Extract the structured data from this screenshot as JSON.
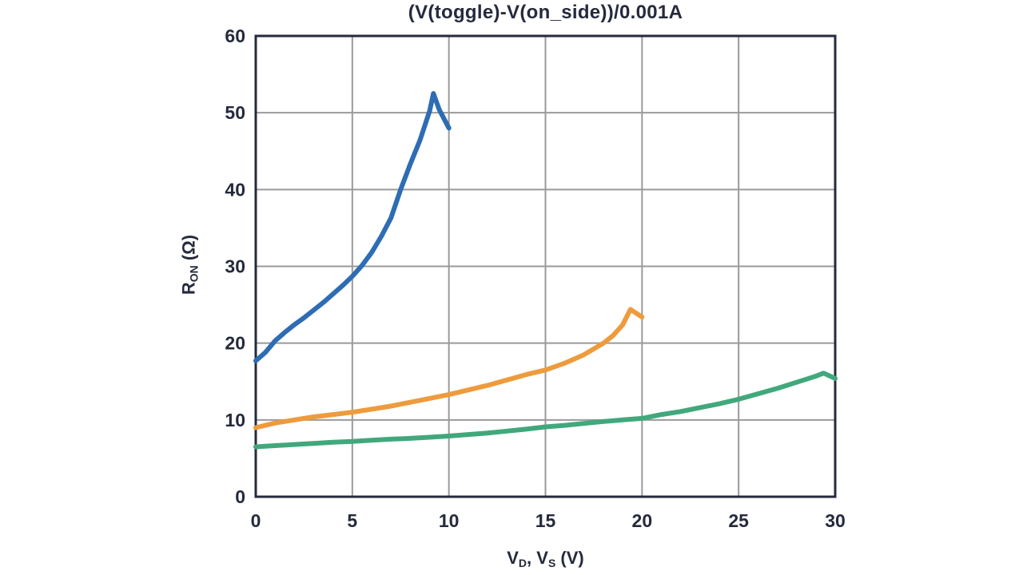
{
  "chart_data": {
    "type": "line",
    "title": "(V(toggle)-V(on_side))/0.001A",
    "xlabel": "V_D, V_S (V)",
    "ylabel": "R_ON (Ω)",
    "xlabel_parts": {
      "p1": "V",
      "s1": "D",
      "p2": ", V",
      "s2": "S",
      "p3": " (V)"
    },
    "ylabel_parts": {
      "p1": "R",
      "s1": "ON",
      "p2": " (Ω)"
    },
    "xlim": [
      0,
      30
    ],
    "ylim": [
      0,
      60
    ],
    "xticks": [
      0,
      5,
      10,
      15,
      20,
      25,
      30
    ],
    "yticks": [
      0,
      10,
      20,
      30,
      40,
      50,
      60
    ],
    "grid": true,
    "legend": "none",
    "colors": {
      "background": "#ffffff",
      "axis_border": "#252a3c",
      "gridline": "#9a9a9a",
      "text": "#252a3c",
      "series_blue": "#2e6db4",
      "series_orange": "#ee9b3d",
      "series_green": "#41a87c"
    },
    "series": [
      {
        "name": "curve-blue",
        "color": "#2e6db4",
        "points": [
          [
            0,
            17.7
          ],
          [
            0.5,
            18.8
          ],
          [
            1,
            20.3
          ],
          [
            1.5,
            21.4
          ],
          [
            2,
            22.4
          ],
          [
            2.5,
            23.3
          ],
          [
            3,
            24.3
          ],
          [
            3.5,
            25.3
          ],
          [
            4,
            26.4
          ],
          [
            4.5,
            27.5
          ],
          [
            5,
            28.7
          ],
          [
            5.5,
            30.1
          ],
          [
            6,
            31.8
          ],
          [
            6.5,
            33.9
          ],
          [
            7,
            36.3
          ],
          [
            7.5,
            40
          ],
          [
            8,
            43.3
          ],
          [
            8.5,
            46.4
          ],
          [
            9,
            50.2
          ],
          [
            9.2,
            52.5
          ],
          [
            9.5,
            50.4
          ],
          [
            10,
            48
          ]
        ]
      },
      {
        "name": "curve-orange",
        "color": "#ee9b3d",
        "points": [
          [
            0,
            9
          ],
          [
            0.5,
            9.3
          ],
          [
            1,
            9.6
          ],
          [
            1.5,
            9.8
          ],
          [
            2,
            10
          ],
          [
            2.5,
            10.2
          ],
          [
            3,
            10.4
          ],
          [
            4,
            10.7
          ],
          [
            5,
            11
          ],
          [
            6,
            11.4
          ],
          [
            7,
            11.8
          ],
          [
            8,
            12.3
          ],
          [
            9,
            12.8
          ],
          [
            10,
            13.3
          ],
          [
            11,
            13.9
          ],
          [
            12,
            14.5
          ],
          [
            13,
            15.2
          ],
          [
            14,
            15.9
          ],
          [
            15,
            16.5
          ],
          [
            16,
            17.4
          ],
          [
            17,
            18.5
          ],
          [
            18,
            20
          ],
          [
            18.5,
            21
          ],
          [
            19,
            22.4
          ],
          [
            19.4,
            24.4
          ],
          [
            20,
            23.4
          ]
        ]
      },
      {
        "name": "curve-green",
        "color": "#41a87c",
        "points": [
          [
            0,
            6.5
          ],
          [
            1,
            6.65
          ],
          [
            2,
            6.8
          ],
          [
            3,
            6.95
          ],
          [
            4,
            7.1
          ],
          [
            5,
            7.2
          ],
          [
            6,
            7.35
          ],
          [
            7,
            7.5
          ],
          [
            8,
            7.6
          ],
          [
            9,
            7.75
          ],
          [
            10,
            7.9
          ],
          [
            11,
            8.1
          ],
          [
            12,
            8.3
          ],
          [
            13,
            8.55
          ],
          [
            14,
            8.8
          ],
          [
            15,
            9.1
          ],
          [
            16,
            9.3
          ],
          [
            17,
            9.55
          ],
          [
            18,
            9.8
          ],
          [
            19,
            10
          ],
          [
            20,
            10.2
          ],
          [
            21,
            10.7
          ],
          [
            22,
            11.1
          ],
          [
            23,
            11.6
          ],
          [
            24,
            12.1
          ],
          [
            25,
            12.7
          ],
          [
            26,
            13.4
          ],
          [
            27,
            14.1
          ],
          [
            28,
            14.9
          ],
          [
            29,
            15.7
          ],
          [
            29.4,
            16.1
          ],
          [
            30,
            15.4
          ]
        ]
      }
    ]
  }
}
